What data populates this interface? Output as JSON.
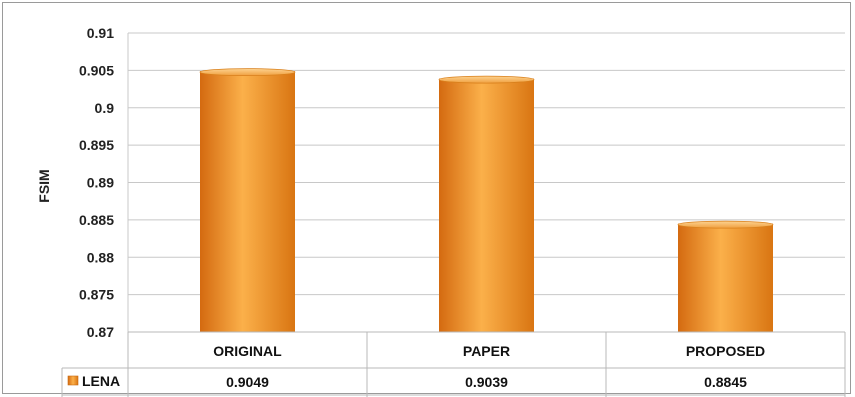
{
  "chart_data": {
    "type": "bar",
    "categories": [
      "ORIGINAL",
      "PAPER",
      "PROPOSED"
    ],
    "series": [
      {
        "name": "LENA",
        "values": [
          0.9049,
          0.9039,
          0.8845
        ],
        "color": "#f29a2e"
      }
    ],
    "data_table": {
      "row_label": "LENA",
      "values": [
        "0.9049",
        "0.9039",
        "0.8845"
      ]
    },
    "ylabel": "FSIM",
    "xlabel": "",
    "ylim": [
      0.87,
      0.91
    ],
    "yticks": [
      "0.87",
      "0.875",
      "0.88",
      "0.885",
      "0.89",
      "0.895",
      "0.9",
      "0.905",
      "0.91"
    ],
    "grid": true,
    "legend": "table-row-left"
  }
}
